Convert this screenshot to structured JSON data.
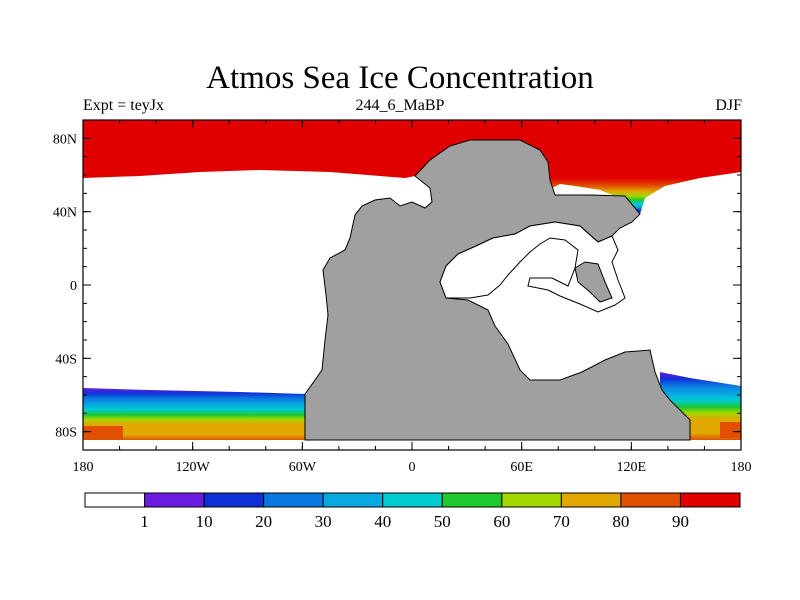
{
  "title": "Atmos Sea Ice Concentration",
  "subtitle_left": "Expt = teyJx",
  "subtitle_center": "244_6_MaBP",
  "subtitle_right": "DJF",
  "map": {
    "projection": "cylindrical equidistant",
    "lon_range": [
      -180,
      180
    ],
    "lat_range": [
      -90,
      90
    ],
    "x_ticks": [
      {
        "value": -180,
        "label": "180"
      },
      {
        "value": -120,
        "label": "120W"
      },
      {
        "value": -60,
        "label": "60W"
      },
      {
        "value": 0,
        "label": "0"
      },
      {
        "value": 60,
        "label": "60E"
      },
      {
        "value": 120,
        "label": "120E"
      },
      {
        "value": 180,
        "label": "180"
      }
    ],
    "y_ticks": [
      {
        "value": 80,
        "label": "80N"
      },
      {
        "value": 40,
        "label": "40N"
      },
      {
        "value": 0,
        "label": "0"
      },
      {
        "value": -40,
        "label": "40S"
      },
      {
        "value": -80,
        "label": "80S"
      }
    ],
    "land_color": "#a0a0a0",
    "ocean_color": "#ffffff"
  },
  "colorbar": {
    "levels": [
      "1",
      "10",
      "20",
      "30",
      "40",
      "50",
      "60",
      "70",
      "80",
      "90"
    ],
    "colors": [
      "#ffffff",
      "#6a1ce0",
      "#1030d8",
      "#0a78e0",
      "#08a8e0",
      "#00ccd0",
      "#20c830",
      "#a0d800",
      "#e0a800",
      "#e05000",
      "#e00000"
    ]
  }
}
